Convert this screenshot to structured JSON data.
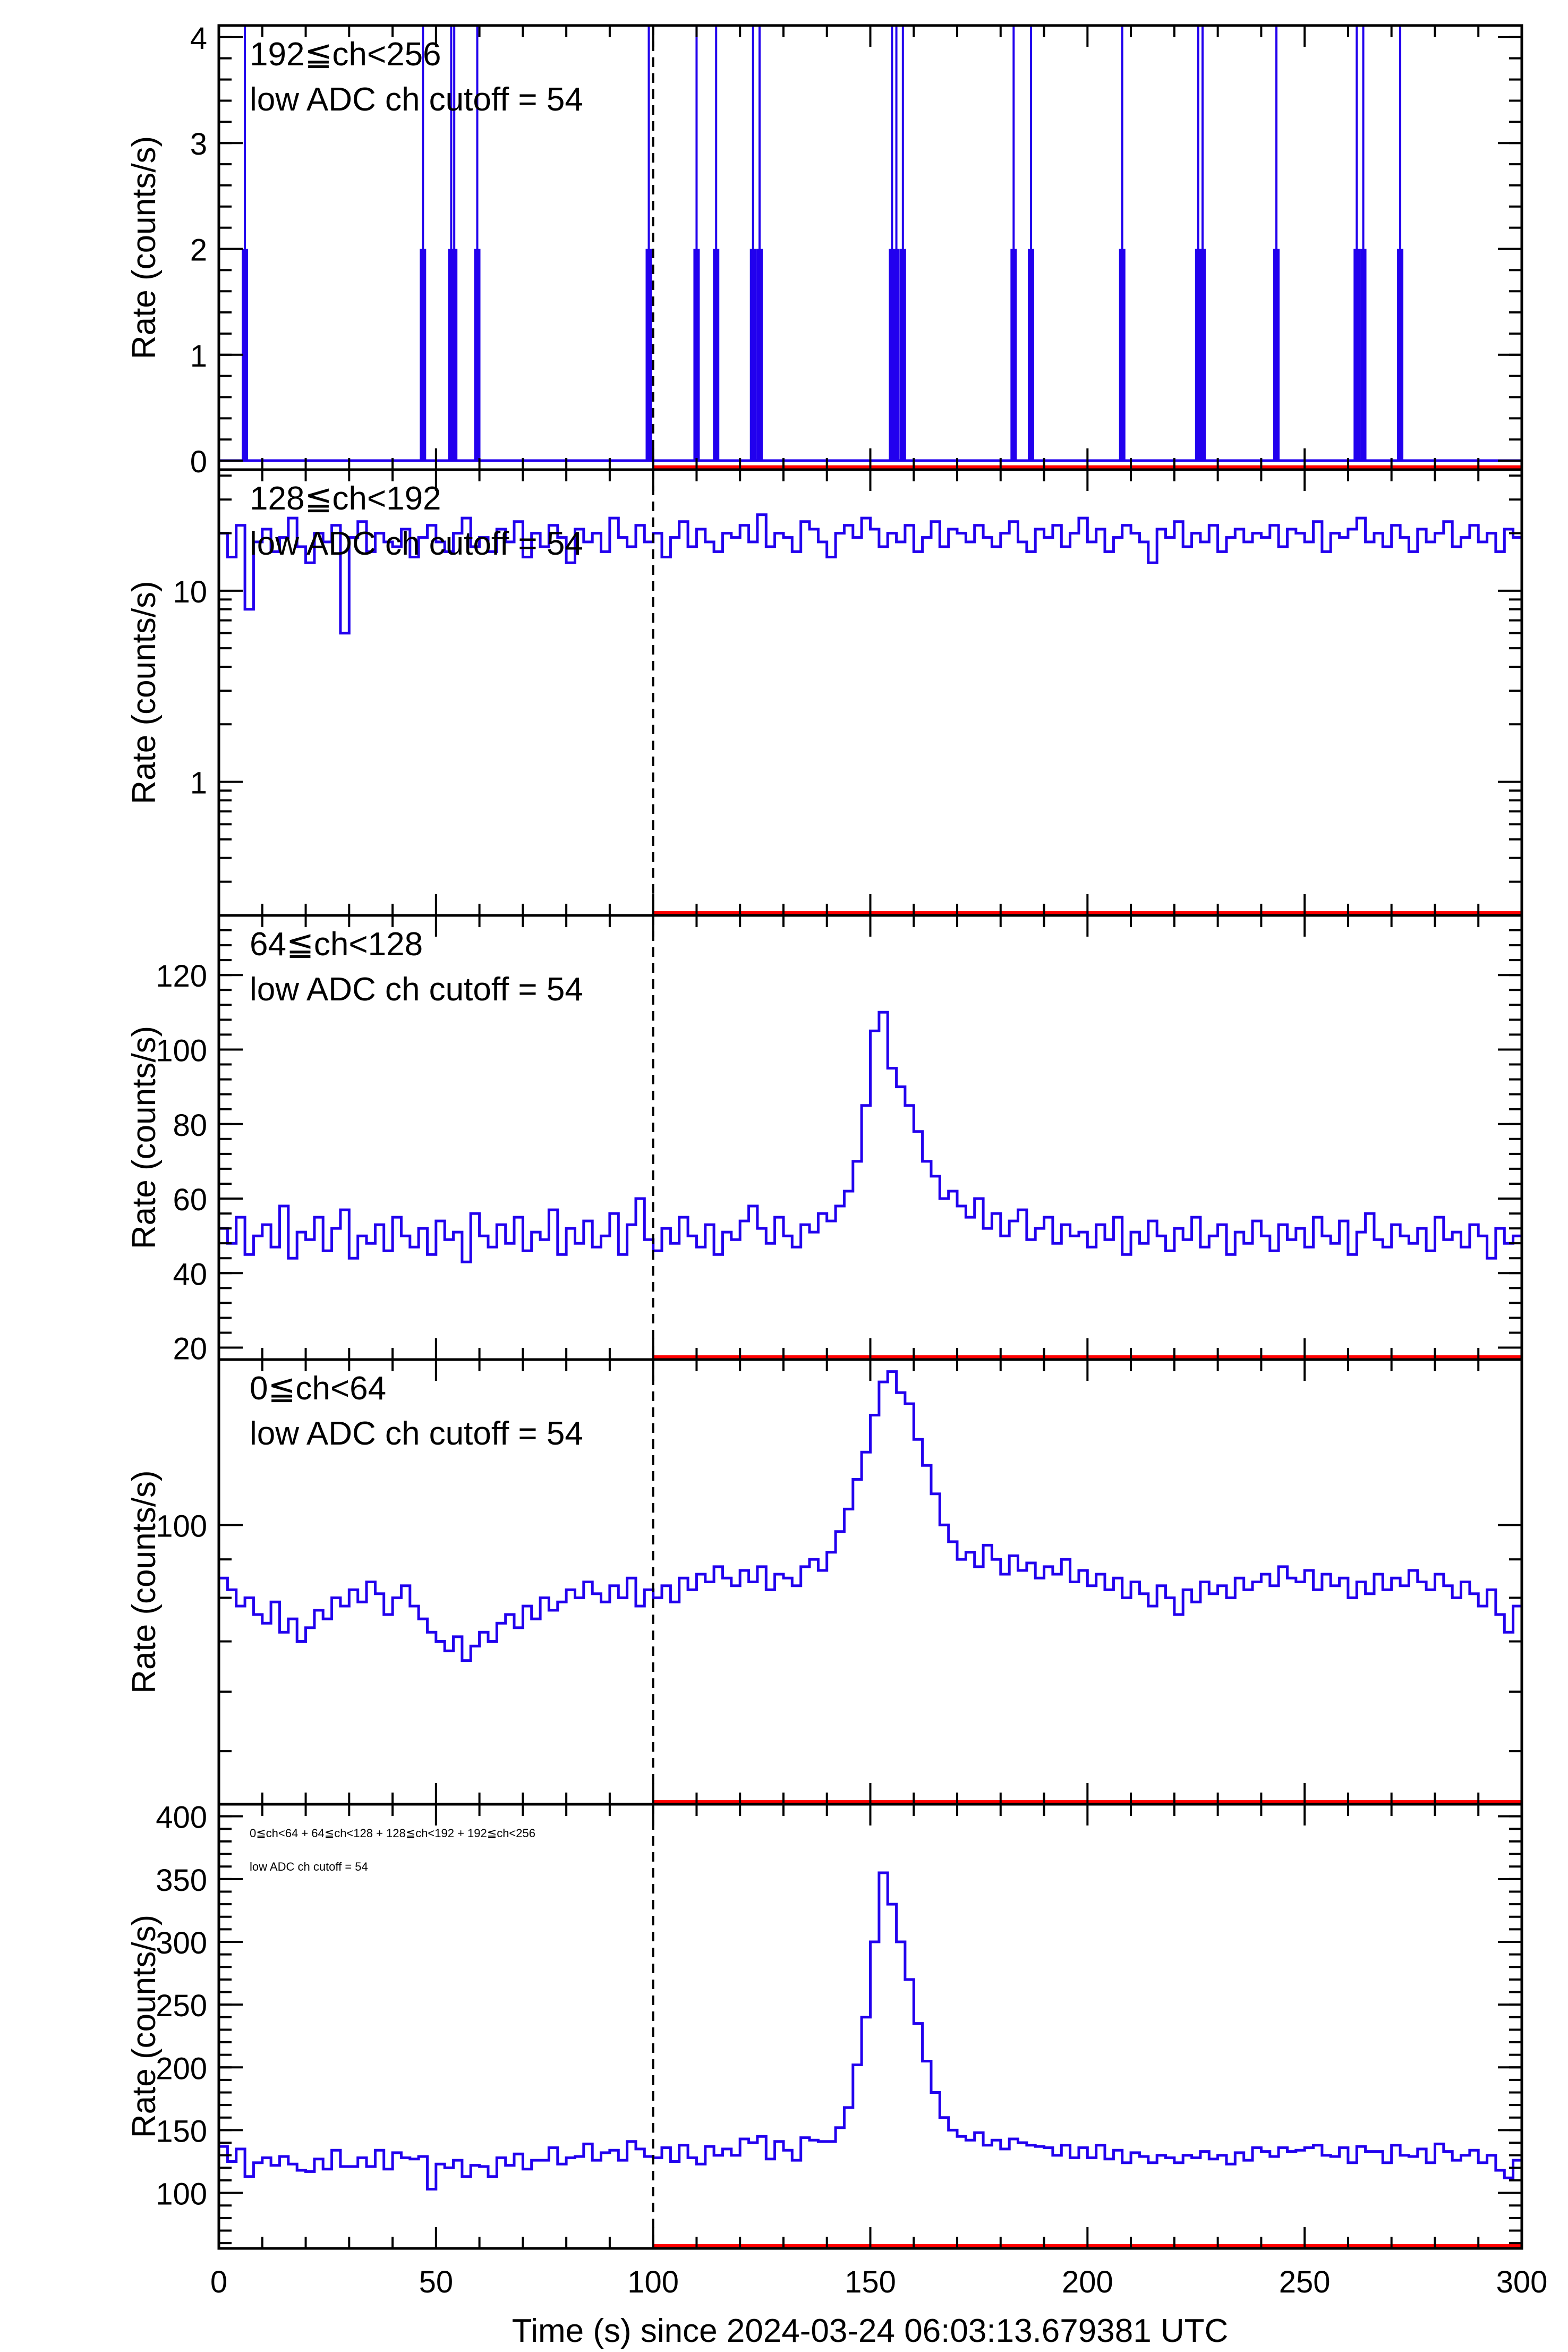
{
  "chart_data": {
    "type": "line",
    "xlabel": "Time (s) since 2024-03-24 06:03:13.679381 UTC",
    "xlim": [
      0,
      300
    ],
    "x_ticks": [
      "0",
      "50",
      "100",
      "150",
      "200",
      "250",
      "300"
    ],
    "bin_width_s": 2,
    "marker_time": 100,
    "red_interval": [
      100,
      300
    ],
    "colors": {
      "series": "#2200ee",
      "marker": "#ff0000",
      "axis": "#000000"
    },
    "panels": [
      {
        "label": "192≦ch<256",
        "cutoff_label": "low ADC ch cutoff =  54",
        "ylabel": "Rate (counts/s)",
        "scale": "linear",
        "ylim": [
          -0.085,
          4.11
        ],
        "y_ticks": [
          "0",
          "1",
          "2",
          "3",
          "4"
        ],
        "y_tick_values": [
          0,
          1,
          2,
          3,
          4
        ],
        "spike_times": [
          6,
          47,
          53.5,
          54.2,
          59.5,
          99,
          110,
          114.5,
          123,
          124.5,
          155,
          156,
          157.5,
          183,
          187,
          208,
          225.5,
          226.5,
          243.5,
          262,
          263.5,
          272
        ],
        "spike_value": 2
      },
      {
        "label": "128≦ch<192",
        "cutoff_label": "low ADC ch cutoff =  54",
        "ylabel": "Rate (counts/s)",
        "scale": "log",
        "ylim": [
          0.2,
          43
        ],
        "y_ticks": [
          "1",
          "10"
        ],
        "y_tick_values": [
          1,
          10
        ],
        "values": [
          20,
          15,
          22,
          8,
          18,
          21,
          16,
          19,
          24,
          17,
          14,
          20,
          18,
          22,
          6,
          19,
          23,
          16,
          20,
          18,
          17,
          21,
          15,
          19,
          22,
          18,
          16,
          20,
          24,
          17,
          19,
          16,
          21,
          18,
          23,
          15,
          20,
          17,
          22,
          19,
          14,
          21,
          18,
          20,
          16,
          24,
          19,
          17,
          22,
          18,
          20,
          15,
          19,
          23,
          17,
          21,
          18,
          16,
          20,
          19,
          22,
          18,
          25,
          17,
          20,
          19,
          16,
          23,
          21,
          18,
          15,
          20,
          22,
          19,
          24,
          21,
          17,
          20,
          18,
          22,
          16,
          19,
          23,
          17,
          21,
          20,
          18,
          22,
          19,
          17,
          20,
          23,
          18,
          16,
          21,
          19,
          22,
          17,
          20,
          24,
          18,
          21,
          16,
          19,
          22,
          20,
          18,
          14,
          21,
          19,
          23,
          17,
          20,
          18,
          22,
          16,
          19,
          21,
          18,
          20,
          19,
          22,
          17,
          21,
          20,
          18,
          23,
          16,
          20,
          19,
          21,
          24,
          18,
          20,
          17,
          22,
          19,
          16,
          21,
          18,
          20,
          23,
          17,
          19,
          22,
          18,
          20,
          16,
          21,
          19
        ]
      },
      {
        "label": "64≦ch<128",
        "cutoff_label": "low ADC ch cutoff =  54",
        "ylabel": "Rate (counts/s)",
        "scale": "linear",
        "ylim": [
          16.8,
          136
        ],
        "y_ticks": [
          "20",
          "40",
          "60",
          "80",
          "100",
          "120"
        ],
        "y_tick_values": [
          20,
          40,
          60,
          80,
          100,
          120
        ],
        "values": [
          52,
          48,
          55,
          45,
          50,
          53,
          47,
          58,
          44,
          51,
          49,
          55,
          46,
          52,
          57,
          44,
          50,
          48,
          53,
          46,
          55,
          50,
          47,
          52,
          45,
          54,
          49,
          51,
          43,
          56,
          50,
          47,
          53,
          48,
          55,
          46,
          51,
          49,
          57,
          45,
          52,
          48,
          54,
          47,
          50,
          56,
          45,
          53,
          60,
          49,
          46,
          52,
          48,
          55,
          50,
          47,
          53,
          45,
          51,
          49,
          54,
          58,
          52,
          48,
          55,
          50,
          47,
          53,
          51,
          56,
          54,
          58,
          62,
          70,
          85,
          105,
          110,
          95,
          90,
          85,
          78,
          70,
          66,
          60,
          62,
          58,
          55,
          60,
          52,
          56,
          50,
          54,
          57,
          49,
          52,
          55,
          48,
          53,
          50,
          51,
          47,
          53,
          49,
          55,
          45,
          51,
          48,
          54,
          50,
          46,
          52,
          49,
          55,
          47,
          50,
          53,
          45,
          51,
          48,
          54,
          50,
          46,
          53,
          49,
          52,
          47,
          55,
          50,
          48,
          54,
          45,
          51,
          56,
          49,
          47,
          53,
          50,
          48,
          52,
          46,
          55,
          49,
          51,
          47,
          53,
          50,
          44,
          52,
          48,
          50
        ]
      },
      {
        "label": "0≦ch<64",
        "cutoff_label": "low ADC ch cutoff =  54",
        "ylabel": "Rate (counts/s)",
        "scale": "log",
        "ylim": [
          42.5,
          166
        ],
        "y_ticks": [
          "100"
        ],
        "y_tick_values": [
          100
        ],
        "values": [
          85,
          82,
          78,
          80,
          76,
          74,
          79,
          72,
          75,
          70,
          73,
          77,
          75,
          80,
          78,
          82,
          79,
          84,
          81,
          76,
          80,
          83,
          78,
          75,
          72,
          70,
          68,
          71,
          66,
          69,
          72,
          70,
          74,
          76,
          73,
          78,
          75,
          80,
          77,
          79,
          82,
          80,
          84,
          81,
          79,
          83,
          80,
          85,
          78,
          82,
          80,
          83,
          79,
          85,
          82,
          86,
          84,
          88,
          85,
          83,
          87,
          84,
          88,
          82,
          86,
          85,
          83,
          88,
          90,
          87,
          92,
          98,
          105,
          115,
          125,
          140,
          155,
          160,
          150,
          145,
          130,
          120,
          110,
          100,
          95,
          90,
          92,
          88,
          94,
          90,
          86,
          91,
          87,
          89,
          85,
          88,
          86,
          90,
          84,
          87,
          83,
          86,
          82,
          85,
          80,
          84,
          81,
          78,
          83,
          80,
          76,
          82,
          79,
          84,
          81,
          83,
          80,
          85,
          82,
          84,
          86,
          83,
          88,
          85,
          84,
          87,
          82,
          86,
          83,
          85,
          80,
          84,
          81,
          86,
          82,
          85,
          83,
          87,
          84,
          82,
          86,
          83,
          80,
          84,
          81,
          78,
          82,
          76,
          72,
          78
        ]
      },
      {
        "label": "0≦ch<64 + 64≦ch<128 + 128≦ch<192 + 192≦ch<256",
        "cutoff_label": "low ADC ch cutoff =  54",
        "ylabel": "Rate (counts/s)",
        "scale": "linear",
        "ylim": [
          55.8,
          409.6
        ],
        "y_ticks": [
          "100",
          "150",
          "200",
          "250",
          "300",
          "350",
          "400"
        ],
        "y_tick_values": [
          100,
          150,
          200,
          250,
          300,
          350,
          400
        ],
        "values": [
          137,
          125,
          135,
          113,
          124,
          128,
          122,
          129,
          123,
          118,
          117,
          127,
          119,
          134,
          121,
          121,
          128,
          121,
          134,
          119,
          132,
          128,
          127,
          129,
          103,
          123,
          120,
          126,
          113,
          122,
          121,
          113,
          128,
          122,
          131,
          119,
          126,
          126,
          136,
          123,
          128,
          129,
          139,
          126,
          132,
          134,
          126,
          141,
          135,
          129,
          128,
          136,
          125,
          138,
          128,
          123,
          137,
          130,
          135,
          130,
          143,
          140,
          145,
          127,
          141,
          134,
          126,
          144,
          142,
          141,
          141,
          152,
          168,
          202,
          240,
          300,
          355,
          330,
          300,
          270,
          235,
          205,
          180,
          160,
          150,
          145,
          142,
          148,
          138,
          142,
          135,
          143,
          140,
          138,
          137,
          136,
          130,
          138,
          128,
          136,
          128,
          138,
          127,
          134,
          124,
          132,
          129,
          124,
          130,
          128,
          124,
          130,
          128,
          133,
          127,
          130,
          123,
          132,
          126,
          136,
          133,
          129,
          136,
          133,
          134,
          136,
          138,
          130,
          129,
          136,
          124,
          137,
          133,
          133,
          124,
          138,
          130,
          129,
          135,
          124,
          139,
          133,
          126,
          130,
          134,
          124,
          130,
          118,
          112,
          126
        ]
      }
    ]
  }
}
